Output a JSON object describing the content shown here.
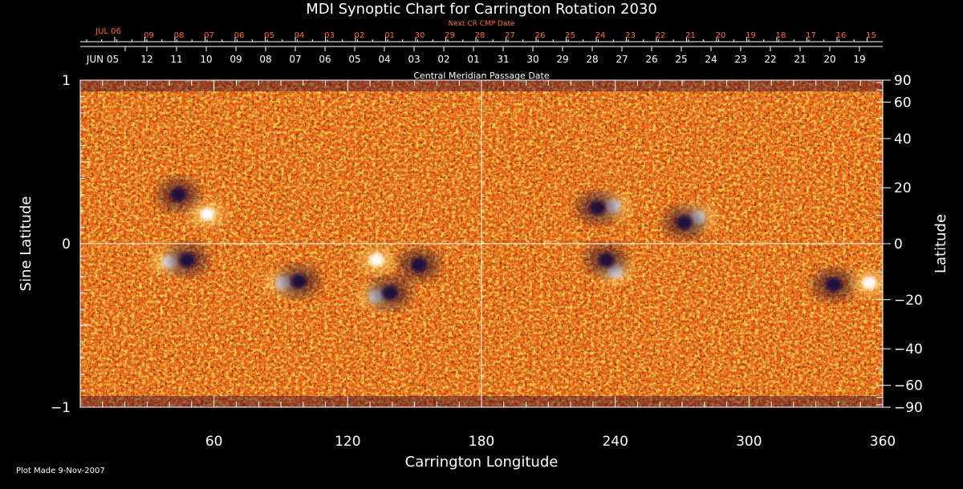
{
  "chart_data": {
    "type": "heatmap",
    "title": "MDI Synoptic Chart for Carrington Rotation 2030",
    "top_label": "Next CR CMP Date",
    "mid_label": "Central Meridian Passage Date",
    "xlabel": "Carrington Longitude",
    "ylabel_left": "Sine Latitude",
    "ylabel_right": "Latitude",
    "footer": "Plot Made  9-Nov-2007",
    "xlim": [
      0,
      360
    ],
    "ylim": [
      -1,
      1
    ],
    "x_ticks": [
      "60",
      "120",
      "180",
      "240",
      "300",
      "360"
    ],
    "y_ticks_left": [
      {
        "v": 1,
        "label": "1"
      },
      {
        "v": 0,
        "label": "0"
      },
      {
        "v": -1,
        "label": "−1"
      }
    ],
    "lat_ticks_right": [
      {
        "lat": 90,
        "label": "90"
      },
      {
        "lat": 60,
        "label": "60"
      },
      {
        "lat": 40,
        "label": "40"
      },
      {
        "lat": 20,
        "label": "20"
      },
      {
        "lat": 0,
        "label": "0"
      },
      {
        "lat": -20,
        "label": "−20"
      },
      {
        "lat": -40,
        "label": "−40"
      },
      {
        "lat": -60,
        "label": "−60"
      },
      {
        "lat": -90,
        "label": "−90"
      }
    ],
    "next_cr_dates": [
      "JUL 06",
      "09",
      "08",
      "07",
      "06",
      "05",
      "04",
      "03",
      "02",
      "01",
      "30",
      "29",
      "28",
      "27",
      "26",
      "25",
      "24",
      "23",
      "22",
      "21",
      "20",
      "19",
      "18",
      "17",
      "16",
      "15"
    ],
    "cmp_dates": [
      "JUN 05",
      "12",
      "11",
      "10",
      "09",
      "08",
      "07",
      "06",
      "05",
      "04",
      "03",
      "02",
      "01",
      "31",
      "30",
      "29",
      "28",
      "27",
      "26",
      "25",
      "24",
      "23",
      "22",
      "21",
      "20",
      "19"
    ],
    "colors": {
      "background": "#000000",
      "field_base": "#e8500f",
      "positive_polarity": "#ffffff",
      "negative_polarity": "#1a0a3a",
      "top_axis_text": "#ff6a2a",
      "axis": "#ffffff"
    },
    "active_regions": [
      {
        "lon": 44,
        "sinlat": 0.3,
        "polarity": "negative"
      },
      {
        "lon": 57,
        "sinlat": 0.18,
        "polarity": "positive"
      },
      {
        "lon": 40,
        "sinlat": -0.11,
        "polarity": "positive"
      },
      {
        "lon": 48,
        "sinlat": -0.1,
        "polarity": "negative"
      },
      {
        "lon": 91,
        "sinlat": -0.24,
        "polarity": "positive"
      },
      {
        "lon": 98,
        "sinlat": -0.23,
        "polarity": "negative"
      },
      {
        "lon": 133,
        "sinlat": -0.32,
        "polarity": "positive"
      },
      {
        "lon": 139,
        "sinlat": -0.3,
        "polarity": "negative"
      },
      {
        "lon": 152,
        "sinlat": -0.13,
        "polarity": "negative"
      },
      {
        "lon": 133,
        "sinlat": -0.1,
        "polarity": "positive"
      },
      {
        "lon": 239,
        "sinlat": 0.23,
        "polarity": "positive"
      },
      {
        "lon": 232,
        "sinlat": 0.22,
        "polarity": "negative"
      },
      {
        "lon": 240,
        "sinlat": -0.17,
        "polarity": "positive"
      },
      {
        "lon": 236,
        "sinlat": -0.1,
        "polarity": "negative"
      },
      {
        "lon": 277,
        "sinlat": 0.16,
        "polarity": "positive"
      },
      {
        "lon": 271,
        "sinlat": 0.13,
        "polarity": "negative"
      },
      {
        "lon": 338,
        "sinlat": -0.25,
        "polarity": "negative"
      },
      {
        "lon": 354,
        "sinlat": -0.24,
        "polarity": "positive"
      }
    ]
  }
}
